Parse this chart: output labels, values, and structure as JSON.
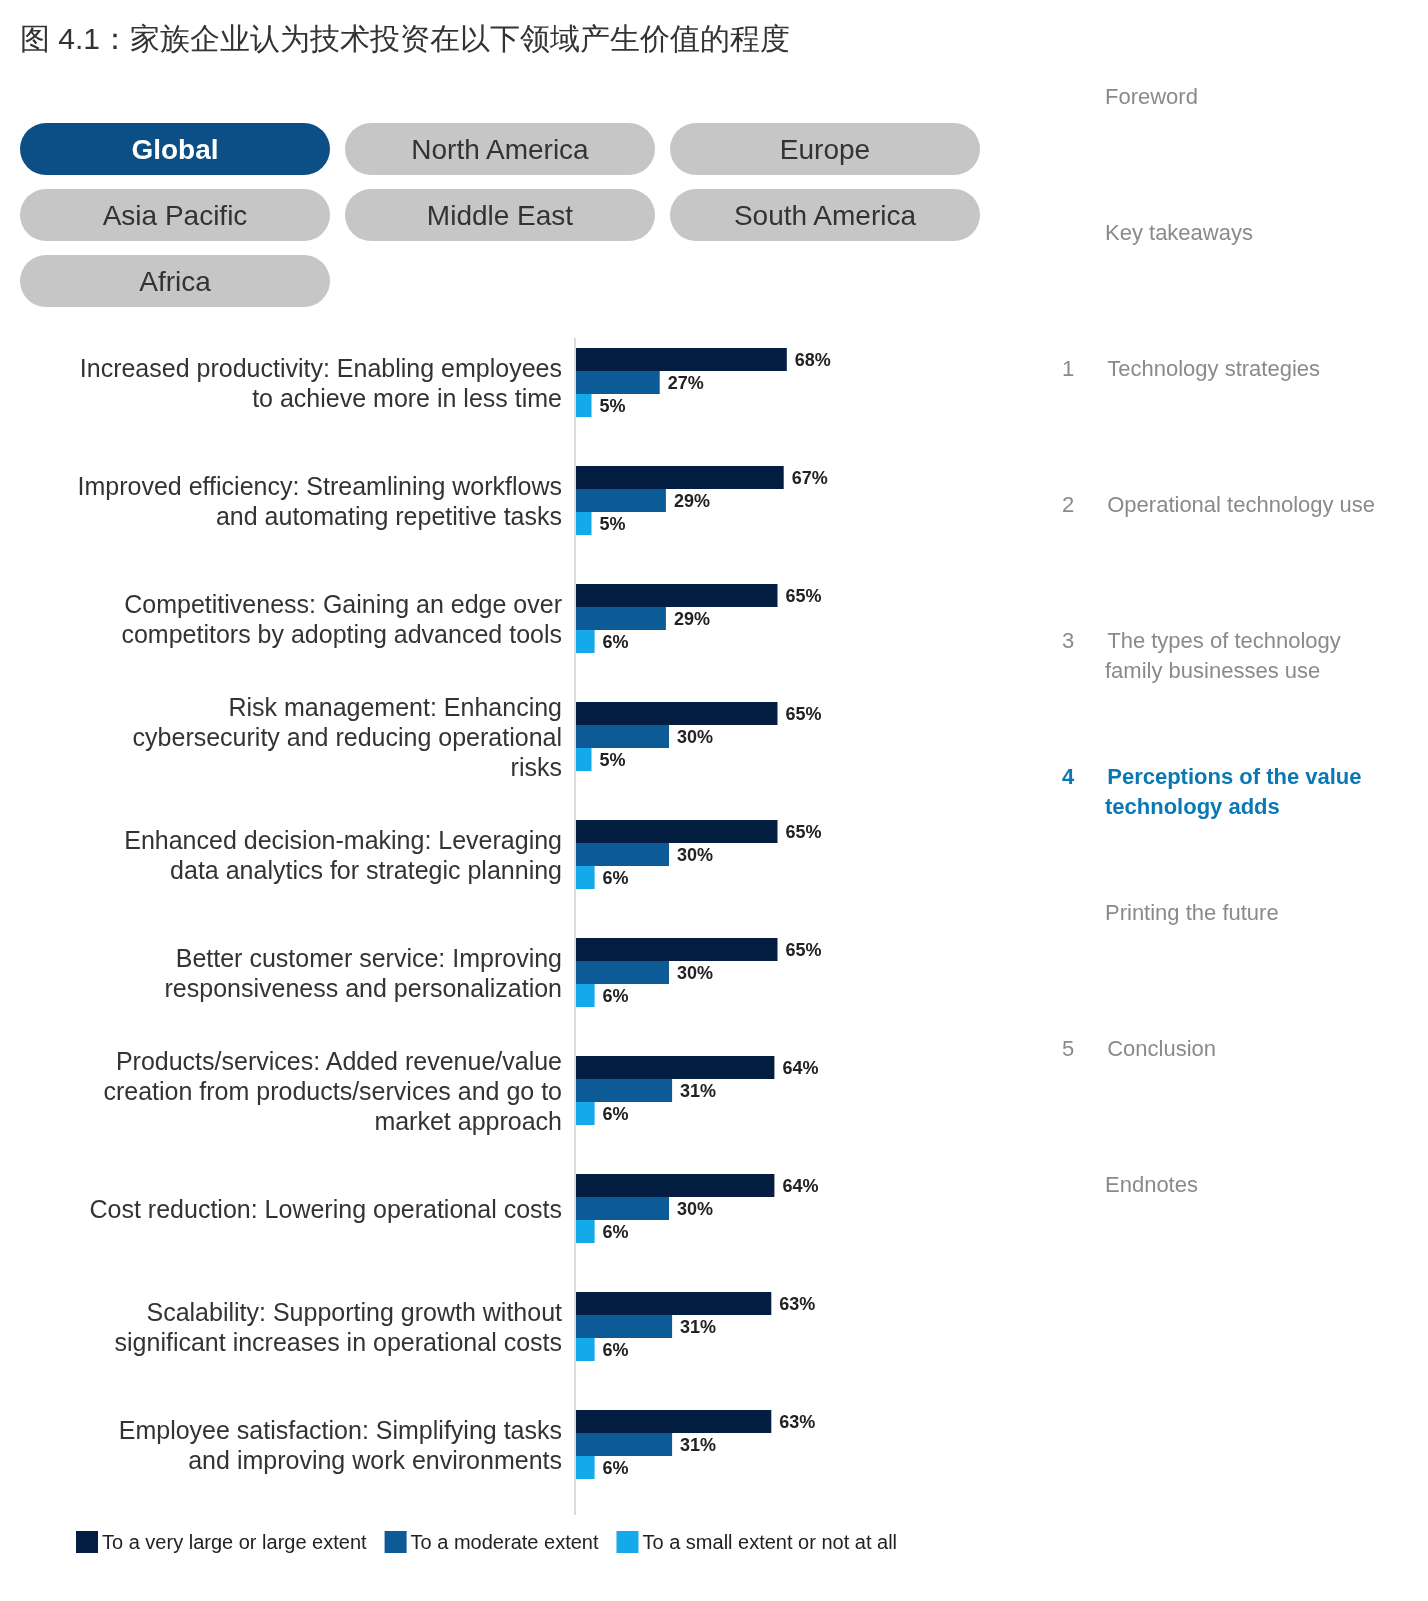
{
  "chart_data": [
    {
      "type": "bar",
      "orientation": "horizontal",
      "title": "图 4.1：家族企业认为技术投资在以下领域产生价值的程度",
      "categories": [
        "Increased productivity: Enabling employees to achieve more in less time",
        "Improved efficiency: Streamlining workflows and automating repetitive tasks",
        "Competitiveness: Gaining an edge over competitors by adopting advanced tools",
        "Risk management: Enhancing cybersecurity and reducing operational risks",
        "Enhanced decision-making: Leveraging data analytics for strategic planning",
        "Better customer service: Improving responsiveness and personalization",
        "Products/services: Added revenue/value creation from products/services and go to market approach",
        "Cost reduction: Lowering operational costs",
        "Scalability: Supporting growth without significant increases in operational costs",
        "Employee satisfaction: Simplifying tasks and improving work environments"
      ],
      "series": [
        {
          "name": "To a very large or large extent",
          "color": "#041e42",
          "values": [
            68,
            67,
            65,
            65,
            65,
            65,
            64,
            64,
            63,
            63
          ],
          "value_labels": [
            "68%",
            "67%",
            "65%",
            "65%",
            "65%",
            "65%",
            "64%",
            "64%",
            "63%",
            "63%"
          ]
        },
        {
          "name": "To a moderate extent",
          "color": "#0c5a96",
          "values": [
            27,
            29,
            29,
            30,
            30,
            30,
            31,
            30,
            31,
            31
          ],
          "value_labels": [
            "27%",
            "29%",
            "29%",
            "30%",
            "30%",
            "30%",
            "31%",
            "30%",
            "31%",
            "31%"
          ]
        },
        {
          "name": "To a small extent or not at all",
          "color": "#14a9e8",
          "values": [
            5,
            5,
            6,
            5,
            6,
            6,
            6,
            6,
            6,
            6
          ],
          "value_labels": [
            "5%",
            "5%",
            "6%",
            "5%",
            "6%",
            "6%",
            "6%",
            "6%",
            "6%",
            "6%"
          ]
        }
      ],
      "legend": "bottom"
    },
    {
      "type": "other",
      "categories": [
        "Global",
        "North America",
        "Europe",
        "Asia Pacific",
        "Middle East",
        "South America",
        "Africa"
      ],
      "colors": [
        "#0b4f86",
        "#c6c6c6",
        "#c6c6c6",
        "#c6c6c6",
        "#c6c6c6",
        "#c6c6c6",
        "#c6c6c6"
      ]
    },
    {
      "type": "other",
      "categories": [
        "Foreword",
        "Key takeaways",
        "Technology strategies",
        "Operational technology use",
        "The types of technology family businesses use",
        "Perceptions of the value technology adds",
        "Printing the future",
        "Conclusion",
        "Endnotes"
      ],
      "value_labels": [
        null,
        null,
        "1",
        "2",
        "3",
        "4",
        null,
        "5",
        null
      ],
      "colors": [
        "#8a8a8a",
        "#8a8a8a",
        "#8a8a8a",
        "#8a8a8a",
        "#8a8a8a",
        "#0a78b5",
        "#8a8a8a",
        "#8a8a8a",
        "#8a8a8a"
      ]
    }
  ]
}
